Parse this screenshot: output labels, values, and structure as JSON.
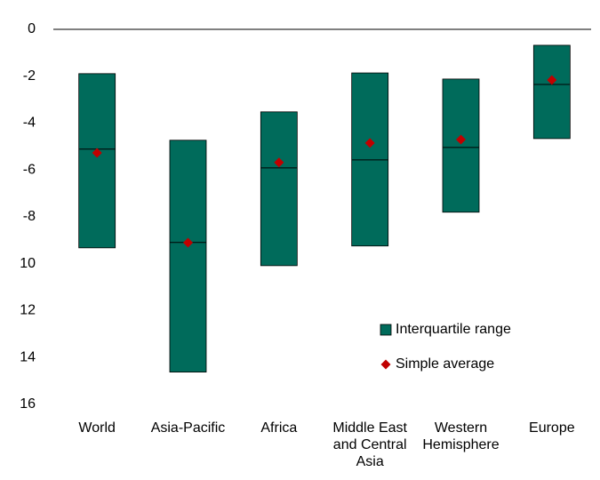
{
  "chart_data": {
    "type": "floating-box",
    "categories": [
      "World",
      "Asia-Pacific",
      "Africa",
      "Middle East and Central Asia",
      "Western Hemisphere",
      "Europe"
    ],
    "series": [
      {
        "name": "Interquartile range",
        "color": "#006b5b",
        "high": [
          -1.89,
          -4.73,
          -3.52,
          -1.86,
          -2.12,
          -0.68
        ],
        "low": [
          -9.32,
          -14.62,
          -10.08,
          -9.24,
          -7.8,
          -4.66
        ],
        "median": [
          -5.11,
          -9.09,
          -5.91,
          -5.57,
          -5.04,
          -2.35
        ]
      },
      {
        "name": "Simple average",
        "color": "#c00000",
        "values": [
          -5.27,
          -9.1,
          -5.68,
          -4.85,
          -4.7,
          -2.16
        ]
      }
    ],
    "ylim": [
      -16,
      0
    ],
    "yticks": [
      0,
      -2,
      -4,
      -6,
      -8,
      {
        "value": -10,
        "label": "10"
      },
      {
        "value": -12,
        "label": "12"
      },
      {
        "value": -14,
        "label": "14"
      },
      {
        "value": -16,
        "label": "16"
      }
    ]
  }
}
